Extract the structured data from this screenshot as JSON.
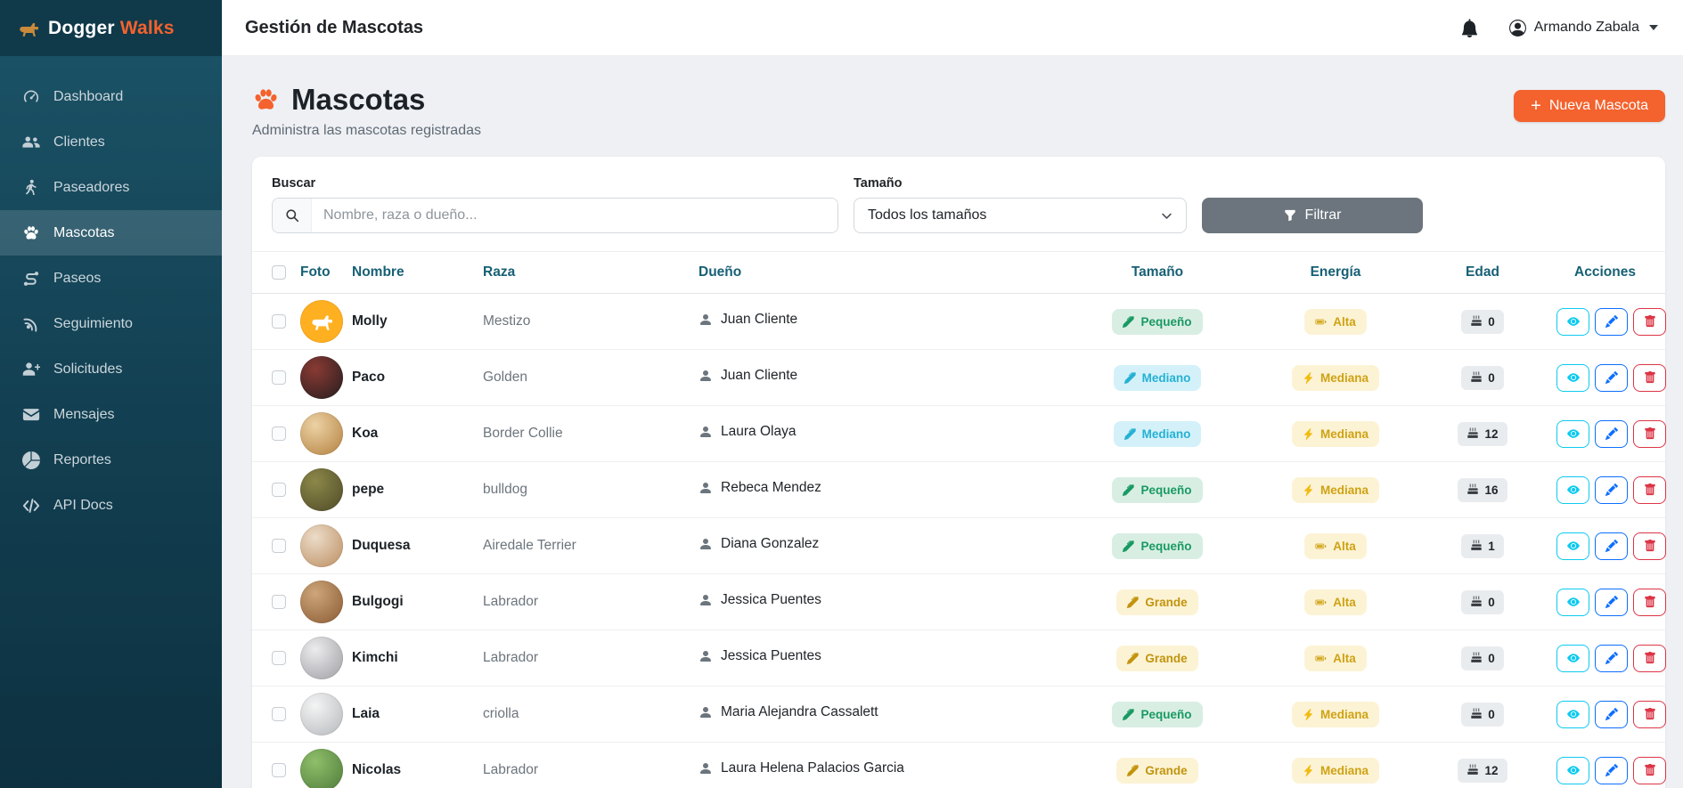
{
  "brand": {
    "primary": "Dogger",
    "secondary": "Walks",
    "logo_icon": "dog-icon"
  },
  "topbar": {
    "title": "Gestión de Mascotas",
    "user_name": "Armando Zabala",
    "icons": [
      "bell-icon",
      "person-circle-icon",
      "caret-down-icon"
    ]
  },
  "sidebar": {
    "items": [
      {
        "label": "Dashboard",
        "icon": "speedometer-icon",
        "active": false
      },
      {
        "label": "Clientes",
        "icon": "people-icon",
        "active": false
      },
      {
        "label": "Paseadores",
        "icon": "person-walking-icon",
        "active": false
      },
      {
        "label": "Mascotas",
        "icon": "paw-icon",
        "active": true
      },
      {
        "label": "Paseos",
        "icon": "route-icon",
        "active": false
      },
      {
        "label": "Seguimiento",
        "icon": "broadcast-icon",
        "active": false
      },
      {
        "label": "Solicitudes",
        "icon": "person-plus-icon",
        "active": false
      },
      {
        "label": "Mensajes",
        "icon": "envelope-icon",
        "active": false
      },
      {
        "label": "Reportes",
        "icon": "pie-chart-icon",
        "active": false
      },
      {
        "label": "API Docs",
        "icon": "code-icon",
        "active": false
      }
    ]
  },
  "page": {
    "title": "Mascotas",
    "title_icon": "paw-icon",
    "subtitle": "Administra las mascotas registradas",
    "new_button_plus": "+",
    "new_button_label": "Nueva Mascota"
  },
  "filters": {
    "search_label": "Buscar",
    "search_placeholder": "Nombre, raza o dueño...",
    "search_icon": "search-icon",
    "size_label": "Tamaño",
    "size_value": "Todos los tamaños",
    "filter_button_label": "Filtrar",
    "filter_button_icon": "funnel-icon"
  },
  "table": {
    "headers": [
      "Foto",
      "Nombre",
      "Raza",
      "Dueño",
      "Tamaño",
      "Energía",
      "Edad",
      "Acciones"
    ],
    "row_actions": [
      {
        "name": "view",
        "icon": "eye-icon"
      },
      {
        "name": "edit",
        "icon": "pencil-icon"
      },
      {
        "name": "delete",
        "icon": "trash-icon"
      }
    ],
    "size_badge_icon": "pen-icon",
    "age_badge_icon": "cake-icon",
    "rows": [
      {
        "name": "Molly",
        "breed": "Mestizo",
        "owner": "Juan Cliente",
        "size": "Pequeño",
        "size_color": "green",
        "energy": "Alta",
        "energy_icon": "battery-icon",
        "age": "0",
        "avatar": {
          "type": "icon",
          "bg": "#ffb021"
        }
      },
      {
        "name": "Paco",
        "breed": "Golden",
        "owner": "Juan Cliente",
        "size": "Mediano",
        "size_color": "cyan",
        "energy": "Mediana",
        "energy_icon": "bolt-icon",
        "age": "0",
        "avatar": {
          "type": "photo",
          "c1": "#8a3a34",
          "c2": "#241d1e"
        }
      },
      {
        "name": "Koa",
        "breed": "Border Collie",
        "owner": "Laura Olaya",
        "size": "Mediano",
        "size_color": "cyan",
        "energy": "Mediana",
        "energy_icon": "bolt-icon",
        "age": "12",
        "avatar": {
          "type": "photo",
          "c1": "#ecd2a4",
          "c2": "#b3803f"
        }
      },
      {
        "name": "pepe",
        "breed": "bulldog",
        "owner": "Rebeca Mendez",
        "size": "Pequeño",
        "size_color": "green",
        "energy": "Mediana",
        "energy_icon": "bolt-icon",
        "age": "16",
        "avatar": {
          "type": "photo",
          "c1": "#8c8849",
          "c2": "#4e4a28"
        }
      },
      {
        "name": "Duquesa",
        "breed": "Airedale Terrier",
        "owner": "Diana Gonzalez",
        "size": "Pequeño",
        "size_color": "green",
        "energy": "Alta",
        "energy_icon": "battery-icon",
        "age": "1",
        "avatar": {
          "type": "photo",
          "c1": "#ecdcc9",
          "c2": "#bb8d60"
        }
      },
      {
        "name": "Bulgogi",
        "breed": "Labrador",
        "owner": "Jessica Puentes",
        "size": "Grande",
        "size_color": "yellow",
        "energy": "Alta",
        "energy_icon": "battery-icon",
        "age": "0",
        "avatar": {
          "type": "photo",
          "c1": "#cda67a",
          "c2": "#8a5a33"
        }
      },
      {
        "name": "Kimchi",
        "breed": "Labrador",
        "owner": "Jessica Puentes",
        "size": "Grande",
        "size_color": "yellow",
        "energy": "Alta",
        "energy_icon": "battery-icon",
        "age": "0",
        "avatar": {
          "type": "photo",
          "c1": "#ececee",
          "c2": "#9d9da3"
        }
      },
      {
        "name": "Laia",
        "breed": "criolla",
        "owner": "Maria Alejandra Cassalett",
        "size": "Pequeño",
        "size_color": "green",
        "energy": "Mediana",
        "energy_icon": "bolt-icon",
        "age": "0",
        "avatar": {
          "type": "photo",
          "c1": "#f4f4f4",
          "c2": "#b4b8bc"
        }
      },
      {
        "name": "Nicolas",
        "breed": "Labrador",
        "owner": "Laura Helena Palacios Garcia",
        "size": "Grande",
        "size_color": "yellow",
        "energy": "Mediana",
        "energy_icon": "bolt-icon",
        "age": "12",
        "avatar": {
          "type": "photo",
          "c1": "#8fbf6a",
          "c2": "#4e7a3a"
        }
      }
    ]
  },
  "colors": {
    "accent_orange": "#f4622d",
    "sidebar_dark": "#10394a",
    "success_green": "#189a62",
    "info_cyan": "#25b1d4",
    "warning_gold": "#c2940d",
    "primary_blue": "#0d6efd",
    "danger_red": "#dc3545",
    "view_cyan": "#0dcaf0",
    "filter_gray": "#6c757d"
  }
}
